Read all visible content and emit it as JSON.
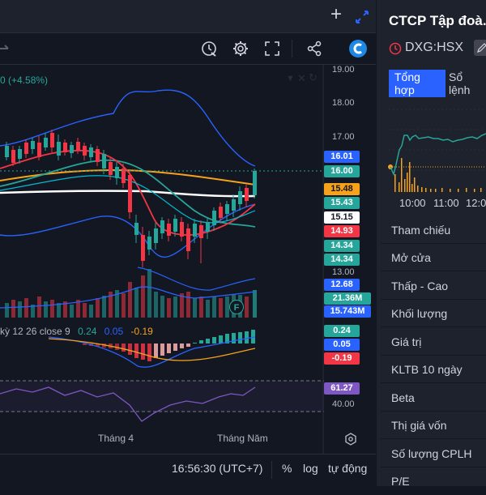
{
  "window": {
    "add_label": "+"
  },
  "legend": {
    "change_text": "0 (+4.58%)",
    "macd_label": "kỳ 12 26 close 9",
    "macd_v1": "0.24",
    "macd_v2": "0.05",
    "macd_v3": "-0.19"
  },
  "price_axis": {
    "ticks": [
      "19.00",
      "18.00",
      "17.00",
      "13.00",
      "40.00"
    ]
  },
  "price_labels": [
    {
      "text": "16.01",
      "color": "#2962ff"
    },
    {
      "text": "16.00",
      "color": "#26a69a"
    },
    {
      "text": "15.48",
      "color": "#f7a21b"
    },
    {
      "text": "15.43",
      "color": "#26a69a"
    },
    {
      "text": "15.15",
      "color": "#ffffff"
    },
    {
      "text": "14.93",
      "color": "#f23645"
    },
    {
      "text": "14.34",
      "color": "#26a69a"
    },
    {
      "text": "14.34",
      "color": "#26a69a"
    },
    {
      "text": "12.68",
      "color": "#2962ff"
    },
    {
      "text": "21.36M",
      "color": "#26a69a"
    },
    {
      "text": "15.743M",
      "color": "#2962ff"
    },
    {
      "text": "0.24",
      "color": "#26a69a"
    },
    {
      "text": "0.05",
      "color": "#2962ff"
    },
    {
      "text": "-0.19",
      "color": "#f23645"
    },
    {
      "text": "61.27",
      "color": "#7e57c2"
    }
  ],
  "time_axis": {
    "month1": "Tháng 4",
    "month2": "Tháng Năm"
  },
  "bottom_bar": {
    "time": "16:56:30 (UTC+7)",
    "percent": "%",
    "log": "log",
    "auto": "tự động"
  },
  "volume_marker": "F",
  "sidebar": {
    "company": "CTCP Tập đoà...",
    "ticker": "DXG:HSX",
    "tabs": [
      "Tổng hợp",
      "Sổ lệnh"
    ],
    "mini_chart_times": [
      "10:00",
      "11:00",
      "12:0"
    ],
    "rows": [
      "Tham chiếu",
      "Mở cửa",
      "Thấp - Cao",
      "Khối lượng",
      "Giá trị",
      "KLTB 10 ngày",
      "Beta",
      "Thị giá vốn",
      "Số lượng CPLH",
      "P/E"
    ]
  },
  "colors": {
    "up": "#26a69a",
    "down": "#f23645",
    "bb": "#2962ff",
    "ma_orange": "#f7a21b",
    "rsi": "#7e57c2",
    "tab_active": "#2962ff"
  }
}
